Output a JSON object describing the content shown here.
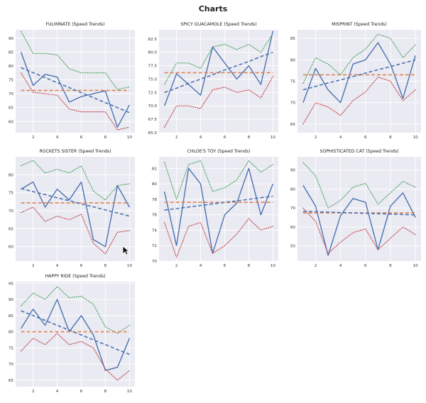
{
  "page": {
    "title": "Charts"
  },
  "style": {
    "panel_bg": "#eaeaf2",
    "grid": "#ffffff",
    "actual_color": "#4c72b0",
    "trend_color": "#4c72b0",
    "mean_color": "#dd8452",
    "upper_color": "#55a868",
    "lower_color": "#c44e52"
  },
  "chart_data": [
    {
      "type": "line",
      "title": "FULMINATE (Speed Trends)",
      "x": [
        1,
        2,
        3,
        4,
        5,
        6,
        7,
        8,
        9,
        10
      ],
      "xticks": [
        2,
        4,
        6,
        8,
        10
      ],
      "ylim": [
        56,
        93
      ],
      "yticks": [
        60,
        65,
        70,
        75,
        80,
        85,
        90
      ],
      "grid": true,
      "series": [
        {
          "role": "upper",
          "style": "dotted",
          "values": [
            92.5,
            84.5,
            84.5,
            84,
            79,
            77.5,
            77.5,
            77.5,
            71.5,
            72.5
          ]
        },
        {
          "role": "actual",
          "style": "solid",
          "values": [
            85,
            73,
            77,
            76,
            67,
            69,
            70,
            71,
            58,
            66
          ]
        },
        {
          "role": "lower",
          "style": "dotted",
          "values": [
            77.5,
            70.5,
            70,
            69.5,
            64.5,
            63.5,
            63.5,
            63.5,
            57,
            58
          ]
        },
        {
          "role": "mean",
          "style": "dashed",
          "values": [
            71.2,
            71.2,
            71.2,
            71.2,
            71.2,
            71.2,
            71.2,
            71.2,
            71.2,
            71.2
          ]
        },
        {
          "role": "trend",
          "style": "dashed",
          "values": [
            79.4,
            77.6,
            75.8,
            74,
            72.2,
            70.4,
            68.6,
            66.8,
            65,
            63.2
          ]
        }
      ]
    },
    {
      "type": "line",
      "title": "SPICY GUACAMOLE (Speed Trends)",
      "x": [
        1,
        2,
        3,
        4,
        5,
        6,
        7,
        8,
        9,
        10
      ],
      "xticks": [
        2,
        4,
        6,
        8,
        10
      ],
      "ylim": [
        65,
        84.2
      ],
      "yticks": [
        65.0,
        67.5,
        70.0,
        72.5,
        75.0,
        77.5,
        80.0,
        82.5
      ],
      "grid": true,
      "series": [
        {
          "role": "upper",
          "style": "dotted",
          "values": [
            74,
            78,
            78,
            77,
            81,
            81.5,
            80.5,
            81.5,
            80,
            83.5
          ]
        },
        {
          "role": "actual",
          "style": "solid",
          "values": [
            70,
            76,
            74,
            72,
            81,
            78,
            75,
            77.5,
            74,
            84
          ]
        },
        {
          "role": "lower",
          "style": "dotted",
          "values": [
            66,
            70,
            70,
            69.5,
            73,
            73.5,
            72.5,
            73,
            71.5,
            75.5
          ]
        },
        {
          "role": "mean",
          "style": "dashed",
          "values": [
            76.2,
            76.2,
            76.2,
            76.2,
            76.2,
            76.2,
            76.2,
            76.2,
            76.2,
            76.2
          ]
        },
        {
          "role": "trend",
          "style": "dashed",
          "values": [
            72.5,
            73.3,
            74.2,
            75,
            75.8,
            76.7,
            77.5,
            78.3,
            79.2,
            80
          ]
        }
      ]
    },
    {
      "type": "line",
      "title": "MISPRINT (Speed Trends)",
      "x": [
        1,
        2,
        3,
        4,
        5,
        6,
        7,
        8,
        9,
        10
      ],
      "xticks": [
        2,
        4,
        6,
        8,
        10
      ],
      "ylim": [
        63,
        87
      ],
      "yticks": [
        65,
        70,
        75,
        80,
        85
      ],
      "grid": true,
      "series": [
        {
          "role": "upper",
          "style": "dotted",
          "values": [
            74.5,
            80.5,
            79,
            76.5,
            80.5,
            82.5,
            86,
            85,
            80.5,
            83.5
          ]
        },
        {
          "role": "actual",
          "style": "solid",
          "values": [
            70,
            78,
            73,
            70,
            79,
            80,
            84,
            79,
            71,
            81
          ]
        },
        {
          "role": "lower",
          "style": "dotted",
          "values": [
            65,
            70,
            69,
            67,
            70.5,
            72.5,
            76,
            75,
            70.5,
            73
          ]
        },
        {
          "role": "mean",
          "style": "dashed",
          "values": [
            76.5,
            76.5,
            76.5,
            76.5,
            76.5,
            76.5,
            76.5,
            76.5,
            76.5,
            76.5
          ]
        },
        {
          "role": "trend",
          "style": "dashed",
          "values": [
            73,
            73.8,
            74.6,
            75.3,
            76.1,
            76.9,
            77.7,
            78.4,
            79.2,
            80
          ]
        }
      ]
    },
    {
      "type": "line",
      "title": "ROCKETS SISTER (Speed Trends)",
      "x": [
        1,
        2,
        3,
        4,
        5,
        6,
        7,
        8,
        9,
        10
      ],
      "xticks": [
        2,
        4,
        6,
        8,
        10
      ],
      "ylim": [
        56,
        85
      ],
      "yticks": [
        60,
        65,
        70,
        75,
        80
      ],
      "grid": true,
      "series": [
        {
          "role": "upper",
          "style": "dotted",
          "values": [
            82.5,
            84,
            80.5,
            81.5,
            80.5,
            82.5,
            75.5,
            73,
            77,
            77.5
          ]
        },
        {
          "role": "actual",
          "style": "solid",
          "values": [
            76,
            78,
            71,
            76,
            73,
            78,
            62,
            60,
            77,
            71
          ]
        },
        {
          "role": "lower",
          "style": "dotted",
          "values": [
            69.5,
            71,
            67,
            68.5,
            67.5,
            69,
            61,
            58,
            64,
            64.5
          ]
        },
        {
          "role": "mean",
          "style": "dashed",
          "values": [
            72.2,
            72.2,
            72.2,
            72.2,
            72.2,
            72.2,
            72.2,
            72.2,
            72.2,
            72.2
          ]
        },
        {
          "role": "trend",
          "style": "dashed",
          "values": [
            76.2,
            75.3,
            74.5,
            73.6,
            72.8,
            71.9,
            71.1,
            70.2,
            69.4,
            68.5
          ]
        }
      ]
    },
    {
      "type": "line",
      "title": "CHLOE'S TOY (Speed Trends)",
      "x": [
        1,
        2,
        3,
        4,
        5,
        6,
        7,
        8,
        9,
        10
      ],
      "xticks": [
        2,
        4,
        6,
        8,
        10
      ],
      "ylim": [
        70,
        83.5
      ],
      "yticks": [
        70,
        72,
        74,
        76,
        78,
        80,
        82
      ],
      "grid": true,
      "series": [
        {
          "role": "upper",
          "style": "dotted",
          "values": [
            82.8,
            78,
            82.5,
            83,
            79,
            79.5,
            80.5,
            83,
            81.5,
            82.5
          ]
        },
        {
          "role": "actual",
          "style": "solid",
          "values": [
            79,
            72,
            82,
            80,
            71,
            76,
            77.5,
            82,
            76,
            80
          ]
        },
        {
          "role": "lower",
          "style": "dotted",
          "values": [
            75,
            70.5,
            74.5,
            75,
            71,
            72,
            73.5,
            75.5,
            74,
            74.5
          ]
        },
        {
          "role": "mean",
          "style": "dashed",
          "values": [
            77.6,
            77.6,
            77.6,
            77.6,
            77.6,
            77.6,
            77.6,
            77.6,
            77.6,
            77.6
          ]
        },
        {
          "role": "trend",
          "style": "dashed",
          "values": [
            76.6,
            76.8,
            77,
            77.2,
            77.4,
            77.6,
            77.8,
            78,
            78.2,
            78.4
          ]
        }
      ]
    },
    {
      "type": "line",
      "title": "SOPHISTICATED CAT (Speed Trends)",
      "x": [
        1,
        2,
        3,
        4,
        5,
        6,
        7,
        8,
        9,
        10
      ],
      "xticks": [
        2,
        4,
        6,
        8,
        10
      ],
      "ylim": [
        42,
        97
      ],
      "yticks": [
        50,
        60,
        70,
        80,
        90
      ],
      "grid": true,
      "series": [
        {
          "role": "upper",
          "style": "dotted",
          "values": [
            94,
            87,
            70,
            74,
            81,
            83,
            72,
            78,
            84,
            81
          ]
        },
        {
          "role": "actual",
          "style": "solid",
          "values": [
            82,
            71,
            45,
            66,
            75,
            73,
            48,
            71,
            78,
            65
          ]
        },
        {
          "role": "lower",
          "style": "dotted",
          "values": [
            70,
            63,
            46,
            52,
            57,
            59,
            48,
            54,
            60,
            56
          ]
        },
        {
          "role": "mean",
          "style": "dashed",
          "values": [
            67.4,
            67.4,
            67.4,
            67.4,
            67.4,
            67.4,
            67.4,
            67.4,
            67.4,
            67.4
          ]
        },
        {
          "role": "trend",
          "style": "dashed",
          "values": [
            68.2,
            68,
            67.8,
            67.6,
            67.4,
            67.2,
            67,
            66.8,
            66.6,
            66.4
          ]
        }
      ]
    },
    {
      "type": "line",
      "title": "HAPPY RIDE (Speed Trends)",
      "x": [
        1,
        2,
        3,
        4,
        5,
        6,
        7,
        8,
        9,
        10
      ],
      "xticks": [
        2,
        4,
        6,
        8,
        10
      ],
      "ylim": [
        63,
        95.5
      ],
      "yticks": [
        65,
        70,
        75,
        80,
        85,
        90,
        95
      ],
      "grid": true,
      "series": [
        {
          "role": "upper",
          "style": "dotted",
          "values": [
            88,
            92,
            90,
            94,
            90.5,
            91,
            88.5,
            81.5,
            79.5,
            82
          ]
        },
        {
          "role": "actual",
          "style": "solid",
          "values": [
            81,
            87,
            82,
            90,
            80,
            85,
            79,
            68,
            69,
            78
          ]
        },
        {
          "role": "lower",
          "style": "dotted",
          "values": [
            74,
            78,
            76,
            79.5,
            76,
            77,
            75,
            68.5,
            65,
            68
          ]
        },
        {
          "role": "mean",
          "style": "dashed",
          "values": [
            80,
            80,
            80,
            80,
            80,
            80,
            80,
            80,
            80,
            80
          ]
        },
        {
          "role": "trend",
          "style": "dashed",
          "values": [
            86.5,
            85,
            83.5,
            82,
            80.5,
            79,
            77.5,
            76,
            74.5,
            73
          ]
        }
      ]
    }
  ]
}
